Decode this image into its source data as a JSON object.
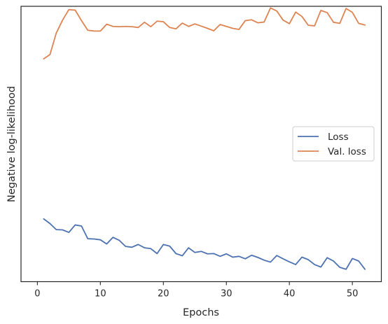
{
  "chart_data": {
    "type": "line",
    "xlabel": "Epochs",
    "ylabel": "Negative log-likelihood",
    "xlim": [
      -2.6,
      54.6
    ],
    "ylim": [
      0,
      100
    ],
    "xticks": [
      0,
      10,
      20,
      30,
      40,
      50
    ],
    "grid": false,
    "legend_position": "center-right",
    "x": [
      1,
      2,
      3,
      4,
      5,
      6,
      7,
      8,
      9,
      10,
      11,
      12,
      13,
      14,
      15,
      16,
      17,
      18,
      19,
      20,
      21,
      22,
      23,
      24,
      25,
      26,
      27,
      28,
      29,
      30,
      31,
      32,
      33,
      34,
      35,
      36,
      37,
      38,
      39,
      40,
      41,
      42,
      43,
      44,
      45,
      46,
      47,
      48,
      49,
      50,
      51,
      52
    ],
    "series": [
      {
        "name": "Loss",
        "color": "#4c72b0",
        "values": [
          22.8,
          21.1,
          18.9,
          18.8,
          17.9,
          20.6,
          20.2,
          15.6,
          15.5,
          15.2,
          13.7,
          16.1,
          15.0,
          12.8,
          12.5,
          13.5,
          12.3,
          12.0,
          10.2,
          13.5,
          12.9,
          10.2,
          9.4,
          12.3,
          10.6,
          11.0,
          10.1,
          10.2,
          9.2,
          10.1,
          8.9,
          9.2,
          8.3,
          9.6,
          8.8,
          7.8,
          7.1,
          9.5,
          8.3,
          7.2,
          6.2,
          8.9,
          8.0,
          6.2,
          5.3,
          8.7,
          7.5,
          5.2,
          4.5,
          8.4,
          7.5,
          4.5
        ]
      },
      {
        "name": "Val. loss",
        "color": "#dd8452",
        "values": [
          80.9,
          82.5,
          90.3,
          95.0,
          98.8,
          98.6,
          94.8,
          91.3,
          91.0,
          91.0,
          93.5,
          92.7,
          92.6,
          92.7,
          92.6,
          92.3,
          94.2,
          92.6,
          94.6,
          94.4,
          92.3,
          91.8,
          93.9,
          92.7,
          93.6,
          92.8,
          92.0,
          91.1,
          93.4,
          92.7,
          92.0,
          91.6,
          94.8,
          95.1,
          94.0,
          94.3,
          99.4,
          98.3,
          95.0,
          93.7,
          97.9,
          96.3,
          93.1,
          92.9,
          98.5,
          97.7,
          94.2,
          93.8,
          99.2,
          97.8,
          93.8,
          93.2
        ]
      }
    ]
  }
}
